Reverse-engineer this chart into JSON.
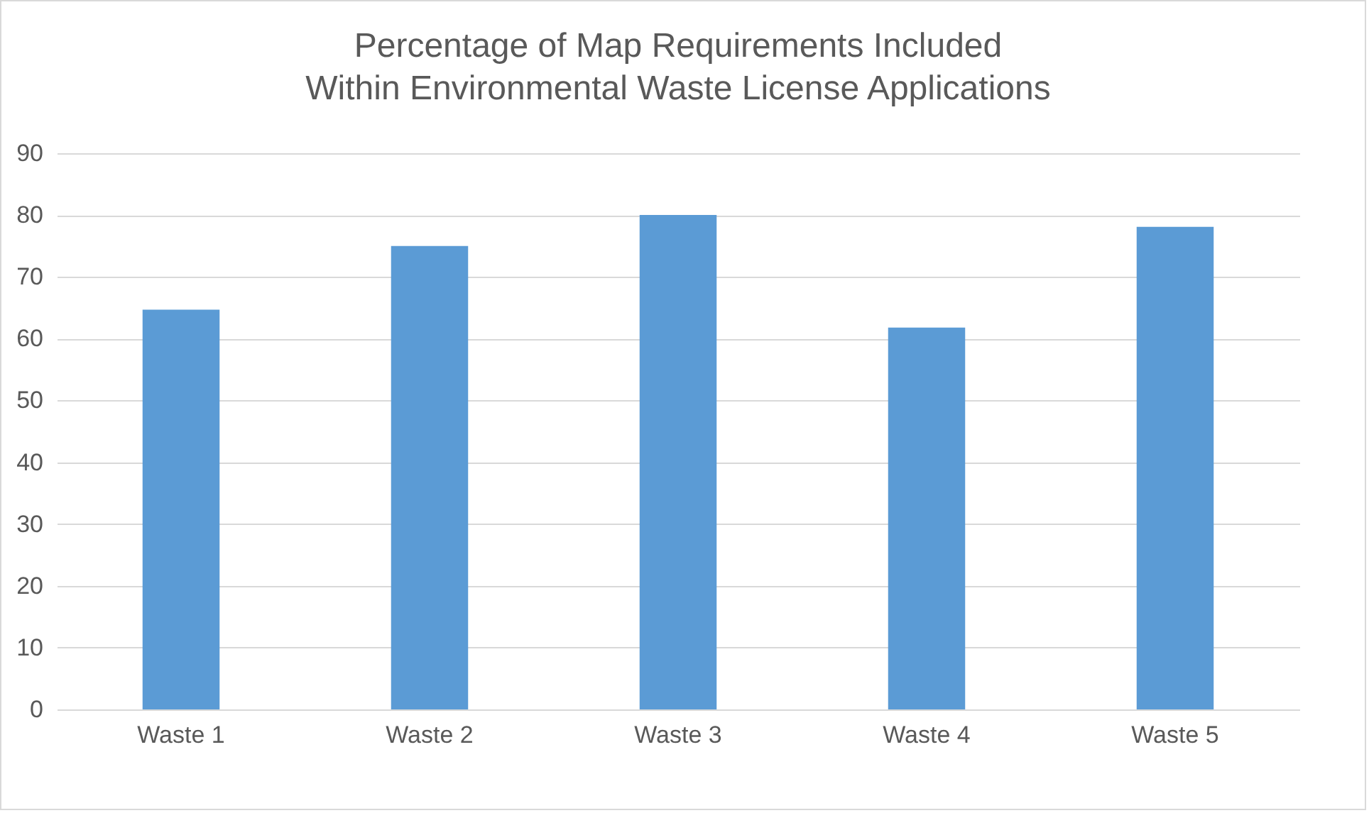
{
  "chart_data": {
    "type": "bar",
    "title": "Percentage of Map Requirements Included Within Environmental Waste License Applications",
    "categories": [
      "Waste 1",
      "Waste 2",
      "Waste 3",
      "Waste 4",
      "Waste 5"
    ],
    "values": [
      64.7,
      75,
      80,
      61.8,
      78.1
    ],
    "color": "#5b9bd5",
    "ylim": [
      0,
      90
    ],
    "yticks": [
      0,
      10,
      20,
      30,
      40,
      50,
      60,
      70,
      80,
      90
    ],
    "grid": "y"
  }
}
